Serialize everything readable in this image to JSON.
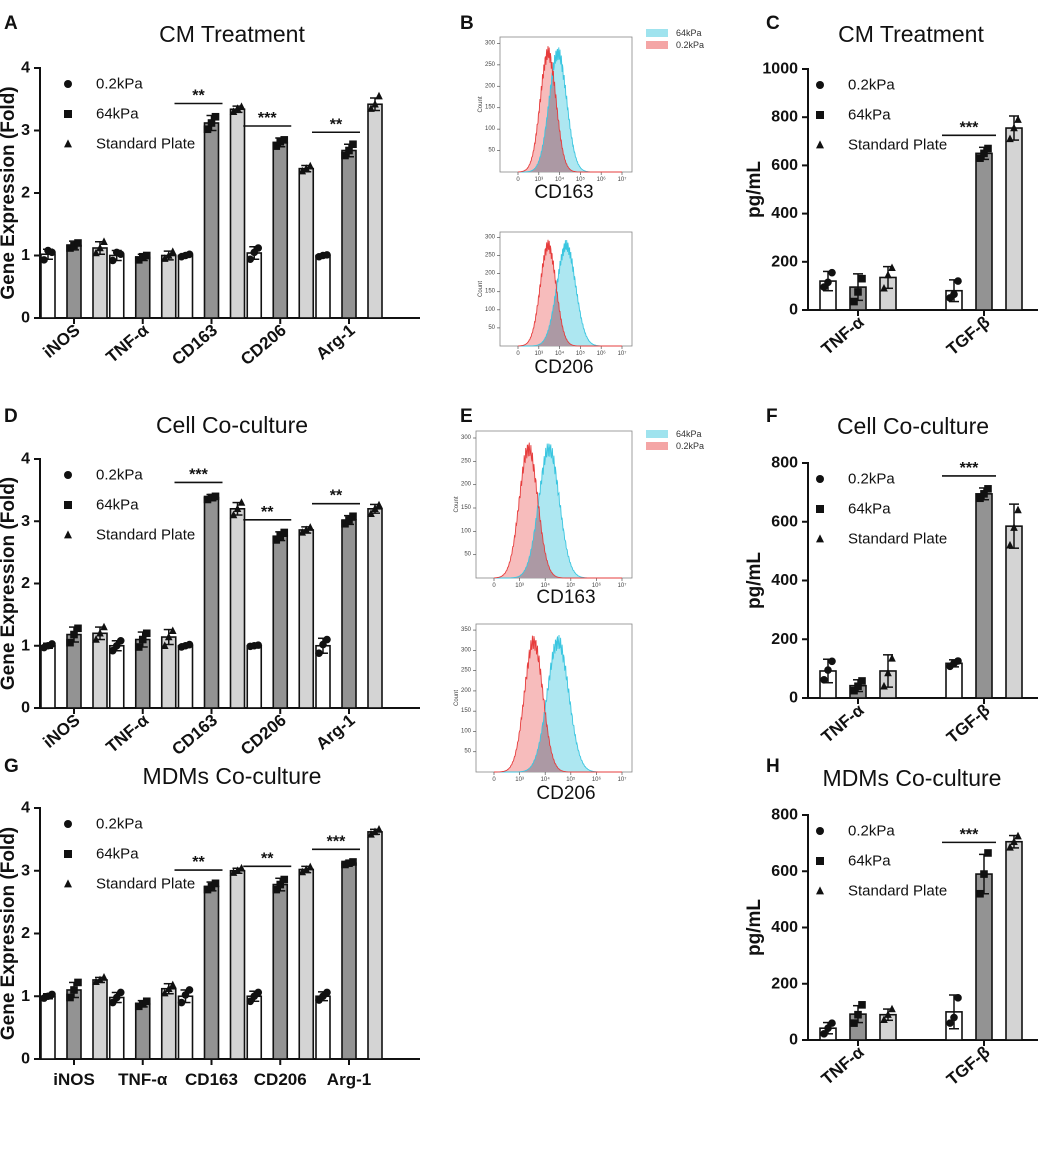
{
  "colors": {
    "g0": "#ffffff",
    "g1": "#939393",
    "g2": "#d4d4d4",
    "axis": "#111111",
    "cyan_fill": "#9fe3ee",
    "cyan_line": "#3bc6e0",
    "red_fill": "#f4a5a5",
    "red_line": "#e63c3c",
    "overlap": "#9a8f9e"
  },
  "legend": {
    "bars": [
      "0.2kPa",
      "64kPa",
      "Standard Plate"
    ],
    "flow": [
      "64kPa",
      "0.2kPa"
    ]
  },
  "chart_data": [
    {
      "panel": "A",
      "type": "bar",
      "title": "CM Treatment",
      "ylabel": "Gene Expression (Fold)",
      "ylim": [
        0,
        4
      ],
      "yticks": [
        0,
        1,
        2,
        3,
        4
      ],
      "categories": [
        "iNOS",
        "TNF-α",
        "CD163",
        "CD206",
        "Arg-1"
      ],
      "series": [
        {
          "name": "0.2kPa",
          "values": [
            1.02,
            1.0,
            1.0,
            1.04,
            1.0
          ],
          "err": [
            0.08,
            0.08,
            0.03,
            0.1,
            0.02
          ],
          "points": [
            [
              0.93,
              1.08,
              1.05
            ],
            [
              0.92,
              1.05,
              1.02
            ],
            [
              0.98,
              1.0,
              1.02
            ],
            [
              0.94,
              1.05,
              1.12
            ],
            [
              0.98,
              1.0,
              1.01
            ]
          ]
        },
        {
          "name": "64kPa",
          "values": [
            1.16,
            0.97,
            3.12,
            2.81,
            2.68
          ],
          "err": [
            0.07,
            0.05,
            0.12,
            0.07,
            0.1
          ],
          "points": [
            [
              1.12,
              1.16,
              1.2
            ],
            [
              0.93,
              0.98,
              1.0
            ],
            [
              3.02,
              3.12,
              3.22
            ],
            [
              2.75,
              2.82,
              2.85
            ],
            [
              2.6,
              2.68,
              2.78
            ]
          ]
        },
        {
          "name": "Standard Plate",
          "values": [
            1.12,
            1.0,
            3.34,
            2.39,
            3.42
          ],
          "err": [
            0.1,
            0.07,
            0.05,
            0.05,
            0.1
          ],
          "points": [
            [
              1.04,
              1.12,
              1.22
            ],
            [
              0.95,
              1.0,
              1.06
            ],
            [
              3.3,
              3.35,
              3.38
            ],
            [
              2.35,
              2.39,
              2.43
            ],
            [
              3.35,
              3.42,
              3.55
            ]
          ]
        }
      ],
      "significance": [
        {
          "category": "CD163",
          "label": "**"
        },
        {
          "category": "CD206",
          "label": "***"
        },
        {
          "category": "Arg-1",
          "label": "**"
        }
      ]
    },
    {
      "panel": "B",
      "type": "histogram",
      "markers": [
        "CD163",
        "CD206"
      ],
      "ylabel": "Count",
      "yticks_top": [
        "50",
        "100",
        "150",
        "200",
        "250",
        "300"
      ],
      "xticks": [
        "0",
        "10³",
        "10⁴",
        "10⁵",
        "10⁶",
        "10⁷"
      ],
      "series": [
        {
          "name": "64kPa",
          "peaks": [
            [
              3.92,
              0.42
            ],
            [
              4.32,
              0.45
            ]
          ]
        },
        {
          "name": "0.2kPa",
          "peaks": [
            [
              3.45,
              0.38
            ],
            [
              3.45,
              0.38
            ]
          ]
        }
      ]
    },
    {
      "panel": "C",
      "type": "bar",
      "title": "CM Treatment",
      "ylabel": "pg/mL",
      "ylim": [
        0,
        1000
      ],
      "yticks": [
        0,
        200,
        400,
        600,
        800,
        1000
      ],
      "categories": [
        "TNF-α",
        "TGF-β"
      ],
      "series": [
        {
          "name": "0.2kPa",
          "values": [
            120,
            80
          ],
          "err": [
            40,
            45
          ],
          "points": [
            [
              95,
              115,
              155
            ],
            [
              50,
              65,
              120
            ]
          ]
        },
        {
          "name": "64kPa",
          "values": [
            95,
            650
          ],
          "err": [
            55,
            25
          ],
          "points": [
            [
              35,
              75,
              130
            ],
            [
              630,
              650,
              670
            ]
          ]
        },
        {
          "name": "Standard Plate",
          "values": [
            135,
            755
          ],
          "err": [
            45,
            50
          ],
          "points": [
            [
              90,
              145,
              175
            ],
            [
              710,
              755,
              790
            ]
          ]
        }
      ],
      "significance": [
        {
          "category": "TGF-β",
          "label": "***"
        }
      ]
    },
    {
      "panel": "D",
      "type": "bar",
      "title": "Cell Co-culture",
      "ylabel": "Gene Expression (Fold)",
      "ylim": [
        0,
        4
      ],
      "yticks": [
        0,
        1,
        2,
        3,
        4
      ],
      "categories": [
        "iNOS",
        "TNF-α",
        "CD163",
        "CD206",
        "Arg-1"
      ],
      "series": [
        {
          "name": "0.2kPa",
          "values": [
            1.0,
            1.0,
            1.0,
            1.0,
            1.0
          ],
          "err": [
            0.04,
            0.08,
            0.03,
            0.02,
            0.12
          ],
          "points": [
            [
              0.97,
              1.0,
              1.03
            ],
            [
              0.92,
              1.0,
              1.08
            ],
            [
              0.98,
              1.0,
              1.02
            ],
            [
              0.99,
              1.0,
              1.01
            ],
            [
              0.88,
              1.02,
              1.1
            ]
          ]
        },
        {
          "name": "64kPa",
          "values": [
            1.18,
            1.1,
            3.38,
            2.76,
            3.02
          ],
          "err": [
            0.12,
            0.12,
            0.05,
            0.07,
            0.07
          ],
          "points": [
            [
              1.05,
              1.18,
              1.28
            ],
            [
              0.98,
              1.1,
              1.2
            ],
            [
              3.35,
              3.38,
              3.4
            ],
            [
              2.7,
              2.76,
              2.82
            ],
            [
              2.96,
              3.02,
              3.08
            ]
          ]
        },
        {
          "name": "Standard Plate",
          "values": [
            1.2,
            1.14,
            3.2,
            2.86,
            3.2
          ],
          "err": [
            0.1,
            0.12,
            0.1,
            0.05,
            0.07
          ],
          "points": [
            [
              1.1,
              1.2,
              1.3
            ],
            [
              1.0,
              1.14,
              1.24
            ],
            [
              3.1,
              3.2,
              3.3
            ],
            [
              2.82,
              2.86,
              2.9
            ],
            [
              3.12,
              3.2,
              3.26
            ]
          ]
        }
      ],
      "significance": [
        {
          "category": "CD163",
          "label": "***"
        },
        {
          "category": "CD206",
          "label": "**"
        },
        {
          "category": "Arg-1",
          "label": "**"
        }
      ]
    },
    {
      "panel": "E",
      "type": "histogram",
      "markers": [
        "CD163",
        "CD206"
      ],
      "ylabel": "Count",
      "yticks_top": [
        "50",
        "100",
        "150",
        "200",
        "250",
        "300"
      ],
      "yticks_bottom": [
        "50",
        "100",
        "150",
        "200",
        "250",
        "300",
        "350"
      ],
      "xticks": [
        "0",
        "10³",
        "10⁴",
        "10⁵",
        "10⁶",
        "10⁷"
      ],
      "series": [
        {
          "name": "64kPa",
          "peaks": [
            [
              4.15,
              0.4
            ],
            [
              4.5,
              0.42
            ]
          ]
        },
        {
          "name": "0.2kPa",
          "peaks": [
            [
              3.35,
              0.36
            ],
            [
              3.55,
              0.36
            ]
          ]
        }
      ]
    },
    {
      "panel": "F",
      "type": "bar",
      "title": "Cell Co-culture",
      "ylabel": "pg/mL",
      "ylim": [
        0,
        800
      ],
      "yticks": [
        0,
        200,
        400,
        600,
        800
      ],
      "categories": [
        "TNF-α",
        "TGF-β"
      ],
      "series": [
        {
          "name": "0.2kPa",
          "values": [
            92,
            118
          ],
          "err": [
            40,
            12
          ],
          "points": [
            [
              62,
              95,
              125
            ],
            [
              108,
              118,
              126
            ]
          ]
        },
        {
          "name": "64kPa",
          "values": [
            42,
            695
          ],
          "err": [
            20,
            20
          ],
          "points": [
            [
              25,
              40,
              58
            ],
            [
              680,
              695,
              712
            ]
          ]
        },
        {
          "name": "Standard Plate",
          "values": [
            92,
            585
          ],
          "err": [
            55,
            75
          ],
          "points": [
            [
              40,
              85,
              135
            ],
            [
              520,
              580,
              640
            ]
          ]
        }
      ],
      "significance": [
        {
          "category": "TGF-β",
          "label": "***"
        }
      ]
    },
    {
      "panel": "G",
      "type": "bar",
      "title": "MDMs Co-culture",
      "ylabel": "Gene Expression (Fold)",
      "ylim": [
        0,
        4
      ],
      "yticks": [
        0,
        1,
        2,
        3,
        4
      ],
      "categories": [
        "iNOS",
        "TNF-α",
        "CD163",
        "CD206",
        "Arg-1"
      ],
      "series": [
        {
          "name": "0.2kPa",
          "values": [
            1.0,
            0.98,
            1.0,
            1.0,
            1.0
          ],
          "err": [
            0.04,
            0.08,
            0.1,
            0.08,
            0.07
          ],
          "points": [
            [
              0.97,
              1.0,
              1.03
            ],
            [
              0.9,
              0.98,
              1.06
            ],
            [
              0.9,
              1.02,
              1.1
            ],
            [
              0.92,
              1.0,
              1.06
            ],
            [
              0.94,
              1.0,
              1.06
            ]
          ]
        },
        {
          "name": "64kPa",
          "values": [
            1.1,
            0.88,
            2.75,
            2.78,
            3.12
          ],
          "err": [
            0.12,
            0.05,
            0.07,
            0.1,
            0.03
          ],
          "points": [
            [
              0.98,
              1.1,
              1.22
            ],
            [
              0.84,
              0.88,
              0.92
            ],
            [
              2.7,
              2.75,
              2.8
            ],
            [
              2.7,
              2.78,
              2.86
            ],
            [
              3.1,
              3.12,
              3.14
            ]
          ]
        },
        {
          "name": "Standard Plate",
          "values": [
            1.26,
            1.12,
            3.0,
            3.02,
            3.62
          ],
          "err": [
            0.04,
            0.08,
            0.04,
            0.05,
            0.04
          ],
          "points": [
            [
              1.23,
              1.26,
              1.3
            ],
            [
              1.05,
              1.12,
              1.18
            ],
            [
              2.97,
              3.0,
              3.04
            ],
            [
              2.98,
              3.02,
              3.06
            ],
            [
              3.58,
              3.62,
              3.66
            ]
          ]
        }
      ],
      "significance": [
        {
          "category": "CD163",
          "label": "**"
        },
        {
          "category": "CD206",
          "label": "**"
        },
        {
          "category": "Arg-1",
          "label": "***"
        }
      ]
    },
    {
      "panel": "H",
      "type": "bar",
      "title": "MDMs Co-culture",
      "ylabel": "pg/mL",
      "ylim": [
        0,
        800
      ],
      "yticks": [
        0,
        200,
        400,
        600,
        800
      ],
      "categories": [
        "TNF-α",
        "TGF-β"
      ],
      "series": [
        {
          "name": "0.2kPa",
          "values": [
            42,
            100
          ],
          "err": [
            20,
            60
          ],
          "points": [
            [
              22,
              42,
              60
            ],
            [
              60,
              80,
              150
            ]
          ]
        },
        {
          "name": "64kPa",
          "values": [
            92,
            590
          ],
          "err": [
            30,
            70
          ],
          "points": [
            [
              60,
              90,
              125
            ],
            [
              520,
              590,
              665
            ]
          ]
        },
        {
          "name": "Standard Plate",
          "values": [
            90,
            705
          ],
          "err": [
            20,
            22
          ],
          "points": [
            [
              72,
              90,
              110
            ],
            [
              685,
              705,
              725
            ]
          ]
        }
      ],
      "significance": [
        {
          "category": "TGF-β",
          "label": "***"
        }
      ]
    }
  ]
}
